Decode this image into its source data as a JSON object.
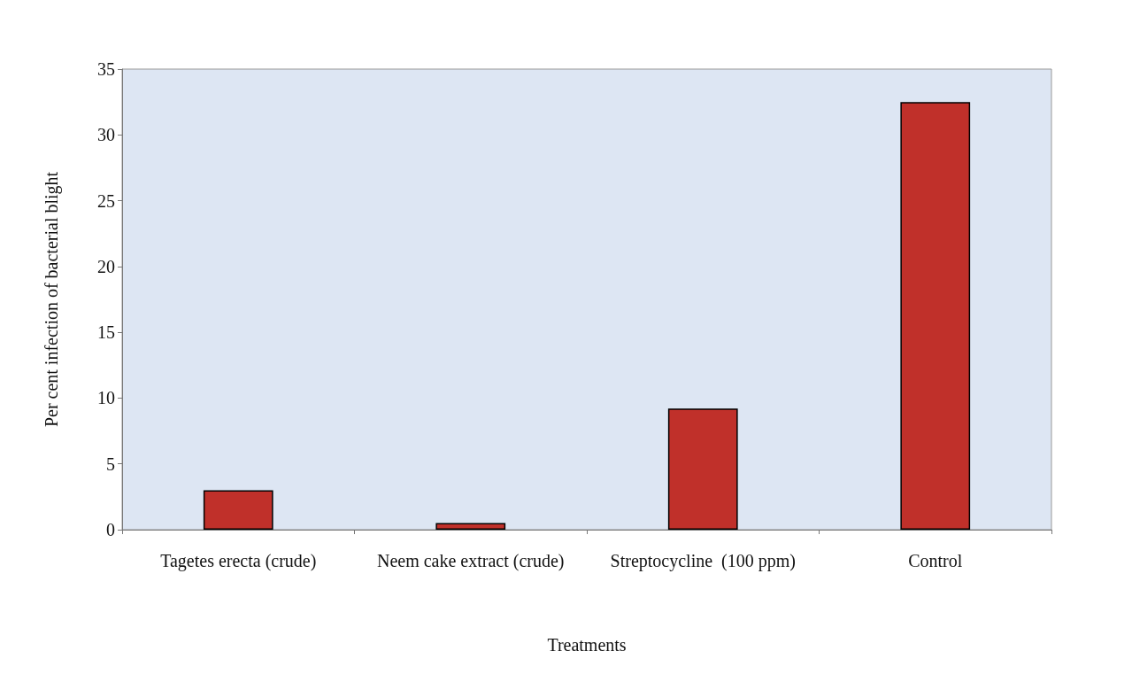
{
  "chart_data": {
    "type": "bar",
    "xlabel": "Treatments",
    "ylabel": "Per cent infection of bacterial blight",
    "categories": [
      "Tagetes erecta (crude)",
      "Neem cake extract (crude)",
      "Streptocycline  (100 ppm)",
      "Control"
    ],
    "values": [
      3,
      0.5,
      9.2,
      32.5
    ],
    "color": "#c0302a",
    "ylim": [
      0,
      35
    ],
    "yticks": [
      0,
      5,
      10,
      15,
      20,
      25,
      30,
      35
    ],
    "grid": false
  }
}
